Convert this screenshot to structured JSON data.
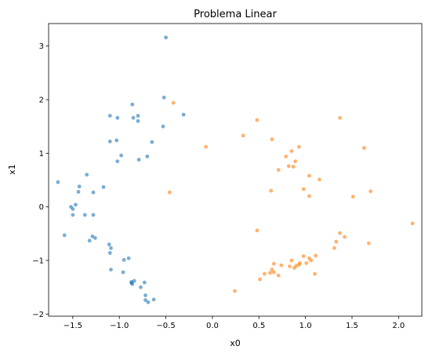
{
  "chart_data": {
    "type": "scatter",
    "title": "Problema Linear",
    "xlabel": "x0",
    "ylabel": "x1",
    "xlim": [
      -1.76,
      2.25
    ],
    "ylim": [
      -2.04,
      3.42
    ],
    "xticks": [
      -1.5,
      -1.0,
      -0.5,
      0.0,
      0.5,
      1.0,
      1.5,
      2.0
    ],
    "yticks": [
      -2,
      -1,
      0,
      1,
      2,
      3
    ],
    "xtick_labels": [
      "−1.5",
      "−1.0",
      "−0.5",
      "0.0",
      "0.5",
      "1.0",
      "1.5",
      "2.0"
    ],
    "ytick_labels": [
      "−2",
      "−1",
      "0",
      "1",
      "2",
      "3"
    ],
    "grid": false,
    "series": [
      {
        "color": "#1f77b4",
        "points": [
          [
            -0.5,
            3.16
          ],
          [
            -0.52,
            2.04
          ],
          [
            -0.86,
            1.91
          ],
          [
            -1.1,
            1.7
          ],
          [
            -1.02,
            1.66
          ],
          [
            -0.8,
            1.7
          ],
          [
            -0.85,
            1.66
          ],
          [
            -0.8,
            1.6
          ],
          [
            -0.53,
            1.5
          ],
          [
            -0.31,
            1.72
          ],
          [
            -1.1,
            1.22
          ],
          [
            -1.03,
            1.24
          ],
          [
            -0.65,
            1.21
          ],
          [
            -0.98,
            0.96
          ],
          [
            -0.79,
            0.88
          ],
          [
            -0.7,
            0.94
          ],
          [
            -1.02,
            0.85
          ],
          [
            -1.66,
            0.46
          ],
          [
            -1.35,
            0.6
          ],
          [
            -1.43,
            0.38
          ],
          [
            -1.17,
            0.37
          ],
          [
            -1.44,
            0.28
          ],
          [
            -1.28,
            0.27
          ],
          [
            -1.52,
            0.0
          ],
          [
            -1.47,
            0.04
          ],
          [
            -1.5,
            -0.04
          ],
          [
            -1.5,
            -0.15
          ],
          [
            -1.37,
            -0.15
          ],
          [
            -1.28,
            -0.15
          ],
          [
            -1.59,
            -0.53
          ],
          [
            -1.29,
            -0.55
          ],
          [
            -1.32,
            -0.63
          ],
          [
            -1.26,
            -0.58
          ],
          [
            -1.11,
            -0.7
          ],
          [
            -1.09,
            -0.77
          ],
          [
            -1.1,
            -0.86
          ],
          [
            -0.95,
            -0.99
          ],
          [
            -0.9,
            -0.96
          ],
          [
            -1.09,
            -1.17
          ],
          [
            -0.96,
            -1.22
          ],
          [
            -0.87,
            -1.4
          ],
          [
            -0.86,
            -1.44
          ],
          [
            -0.84,
            -1.38
          ],
          [
            -0.87,
            -1.42
          ],
          [
            -0.73,
            -1.41
          ],
          [
            -0.77,
            -1.5
          ],
          [
            -0.72,
            -1.65
          ],
          [
            -0.72,
            -1.74
          ],
          [
            -0.69,
            -1.78
          ],
          [
            -0.63,
            -1.73
          ]
        ]
      },
      {
        "color": "#ff7f0e",
        "points": [
          [
            -0.42,
            1.94
          ],
          [
            0.48,
            1.62
          ],
          [
            1.37,
            1.66
          ],
          [
            0.33,
            1.33
          ],
          [
            0.64,
            1.26
          ],
          [
            -0.07,
            1.12
          ],
          [
            0.93,
            1.12
          ],
          [
            0.85,
            1.04
          ],
          [
            1.63,
            1.1
          ],
          [
            0.79,
            0.94
          ],
          [
            0.89,
            0.85
          ],
          [
            0.82,
            0.76
          ],
          [
            0.87,
            0.75
          ],
          [
            0.71,
            0.69
          ],
          [
            1.04,
            0.58
          ],
          [
            1.15,
            0.51
          ],
          [
            0.98,
            0.33
          ],
          [
            -0.46,
            0.27
          ],
          [
            0.63,
            0.3
          ],
          [
            1.04,
            0.2
          ],
          [
            1.51,
            0.19
          ],
          [
            1.7,
            0.29
          ],
          [
            2.15,
            -0.31
          ],
          [
            0.48,
            -0.44
          ],
          [
            1.37,
            -0.49
          ],
          [
            1.42,
            -0.56
          ],
          [
            1.33,
            -0.65
          ],
          [
            1.31,
            -0.77
          ],
          [
            1.68,
            -0.68
          ],
          [
            0.98,
            -0.92
          ],
          [
            1.04,
            -0.96
          ],
          [
            1.11,
            -0.91
          ],
          [
            0.85,
            -1.0
          ],
          [
            0.94,
            -1.05
          ],
          [
            1.06,
            -1.0
          ],
          [
            0.66,
            -1.06
          ],
          [
            0.74,
            -1.09
          ],
          [
            0.83,
            -1.11
          ],
          [
            0.9,
            -1.1
          ],
          [
            0.93,
            -1.08
          ],
          [
            1.01,
            -1.05
          ],
          [
            0.88,
            -1.14
          ],
          [
            0.64,
            -1.17
          ],
          [
            0.66,
            -1.22
          ],
          [
            0.56,
            -1.25
          ],
          [
            0.62,
            -1.23
          ],
          [
            0.71,
            -1.28
          ],
          [
            0.51,
            -1.35
          ],
          [
            1.1,
            -1.25
          ],
          [
            0.24,
            -1.57
          ]
        ]
      }
    ]
  }
}
